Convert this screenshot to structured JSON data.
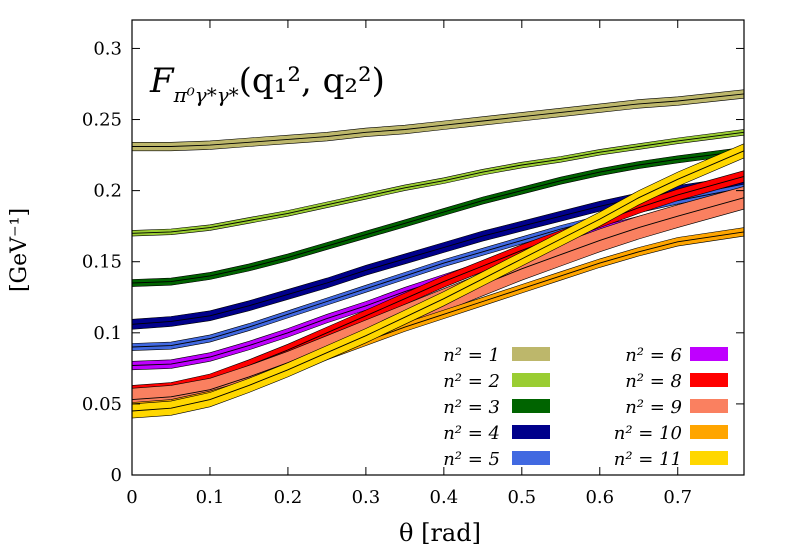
{
  "chart_data": {
    "type": "area",
    "title_main": "F",
    "title_sub": "π⁰γ*γ*",
    "title_args": "(q₁², q₂²)",
    "xlabel": "θ [rad]",
    "ylabel": "[GeV⁻¹]",
    "xlim": [
      0,
      0.785
    ],
    "ylim": [
      0,
      0.32
    ],
    "xticks": [
      {
        "v": 0,
        "label": "0"
      },
      {
        "v": 0.1,
        "label": "0.1"
      },
      {
        "v": 0.2,
        "label": "0.2"
      },
      {
        "v": 0.3,
        "label": "0.3"
      },
      {
        "v": 0.4,
        "label": "0.4"
      },
      {
        "v": 0.5,
        "label": "0.5"
      },
      {
        "v": 0.6,
        "label": "0.6"
      },
      {
        "v": 0.7,
        "label": "0.7"
      }
    ],
    "yticks": [
      {
        "v": 0,
        "label": "0"
      },
      {
        "v": 0.05,
        "label": "0.05"
      },
      {
        "v": 0.1,
        "label": "0.1"
      },
      {
        "v": 0.15,
        "label": "0.15"
      },
      {
        "v": 0.2,
        "label": "0.2"
      },
      {
        "v": 0.25,
        "label": "0.25"
      },
      {
        "v": 0.3,
        "label": "0.3"
      }
    ],
    "grid": false,
    "legend_position": "bottom-right",
    "x": [
      0,
      0.05,
      0.1,
      0.15,
      0.2,
      0.25,
      0.3,
      0.35,
      0.4,
      0.45,
      0.5,
      0.55,
      0.6,
      0.65,
      0.7,
      0.785
    ],
    "series": [
      {
        "name": "n² = 1",
        "color": "#bdb76b",
        "width": 0.006,
        "values": [
          0.231,
          0.231,
          0.232,
          0.234,
          0.236,
          0.238,
          0.241,
          0.243,
          0.246,
          0.249,
          0.252,
          0.255,
          0.258,
          0.261,
          0.263,
          0.268
        ]
      },
      {
        "name": "n² = 2",
        "color": "#9acd32",
        "width": 0.004,
        "values": [
          0.17,
          0.171,
          0.174,
          0.179,
          0.184,
          0.19,
          0.196,
          0.202,
          0.207,
          0.213,
          0.218,
          0.222,
          0.227,
          0.231,
          0.235,
          0.241
        ]
      },
      {
        "name": "n² = 3",
        "color": "#006400",
        "width": 0.005,
        "values": [
          0.135,
          0.136,
          0.14,
          0.146,
          0.153,
          0.161,
          0.169,
          0.177,
          0.185,
          0.193,
          0.2,
          0.207,
          0.213,
          0.218,
          0.222,
          0.228
        ]
      },
      {
        "name": "n² = 4",
        "color": "#00008b",
        "width": 0.007,
        "values": [
          0.106,
          0.108,
          0.112,
          0.119,
          0.127,
          0.135,
          0.144,
          0.152,
          0.16,
          0.168,
          0.175,
          0.182,
          0.189,
          0.195,
          0.2,
          0.207
        ]
      },
      {
        "name": "n² = 5",
        "color": "#4169e1",
        "width": 0.005,
        "values": [
          0.09,
          0.091,
          0.096,
          0.104,
          0.113,
          0.122,
          0.131,
          0.14,
          0.149,
          0.157,
          0.165,
          0.173,
          0.18,
          0.187,
          0.193,
          0.202
        ]
      },
      {
        "name": "n² = 6",
        "color": "#bf00ff",
        "width": 0.006,
        "values": [
          0.077,
          0.078,
          0.083,
          0.091,
          0.1,
          0.11,
          0.119,
          0.129,
          0.138,
          0.147,
          0.156,
          0.164,
          0.172,
          0.179,
          0.186,
          0.196
        ]
      },
      {
        "name": "n² = 8",
        "color": "#ff0000",
        "width": 0.008,
        "values": [
          0.059,
          0.061,
          0.067,
          0.077,
          0.088,
          0.1,
          0.112,
          0.124,
          0.136,
          0.147,
          0.158,
          0.168,
          0.178,
          0.188,
          0.197,
          0.21
        ]
      },
      {
        "name": "n² = 9",
        "color": "#fa8060",
        "width": 0.016,
        "values": [
          0.053,
          0.055,
          0.06,
          0.069,
          0.079,
          0.09,
          0.101,
          0.112,
          0.123,
          0.134,
          0.145,
          0.155,
          0.165,
          0.174,
          0.182,
          0.195
        ]
      },
      {
        "name": "n² = 10",
        "color": "#ffa500",
        "width": 0.006,
        "values": [
          0.048,
          0.05,
          0.056,
          0.064,
          0.074,
          0.084,
          0.094,
          0.104,
          0.113,
          0.122,
          0.131,
          0.14,
          0.149,
          0.157,
          0.164,
          0.171
        ]
      },
      {
        "name": "n² = 11",
        "color": "#ffd700",
        "width": 0.01,
        "values": [
          0.045,
          0.047,
          0.053,
          0.063,
          0.074,
          0.086,
          0.098,
          0.111,
          0.124,
          0.138,
          0.152,
          0.166,
          0.18,
          0.195,
          0.208,
          0.228
        ]
      }
    ]
  }
}
